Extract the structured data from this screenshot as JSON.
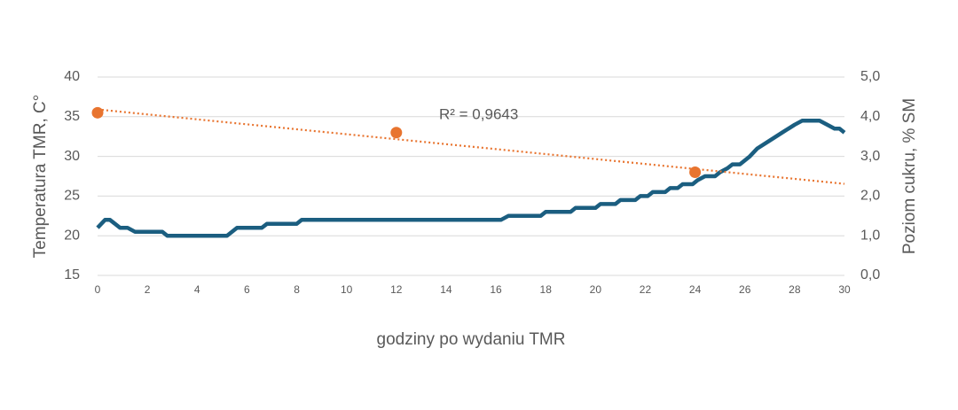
{
  "chart_data": {
    "type": "line",
    "xlabel": "godziny po wydaniu TMR",
    "ylabel": "Temperatura TMR, C°",
    "y2label": "Poziom cukru, % SM",
    "annotation": "R² = 0,9643",
    "xlim": [
      0,
      30
    ],
    "xticks": [
      0,
      2,
      4,
      6,
      8,
      10,
      12,
      14,
      16,
      18,
      20,
      22,
      24,
      26,
      28,
      30
    ],
    "ylim": [
      15,
      40
    ],
    "yticks": [
      15,
      20,
      25,
      30,
      35,
      40
    ],
    "y2lim": [
      0,
      5
    ],
    "y2ticks": [
      {
        "value": 0,
        "label": "0,0"
      },
      {
        "value": 1,
        "label": "1,0"
      },
      {
        "value": 2,
        "label": "2,0"
      },
      {
        "value": 3,
        "label": "3,0"
      },
      {
        "value": 4,
        "label": "4,0"
      },
      {
        "value": 5,
        "label": "5,0"
      }
    ],
    "grid": true,
    "series": [
      {
        "type": "line",
        "color": "#1b5e80",
        "x": [
          0,
          0.3,
          0.5,
          0.9,
          1.2,
          1.5,
          2.6,
          2.8,
          5.2,
          5.6,
          6.6,
          6.8,
          8,
          8.2,
          16.2,
          16.5,
          17.8,
          18,
          19,
          19.2,
          20,
          20.2,
          20.8,
          21,
          21.6,
          21.8,
          22.1,
          22.3,
          22.8,
          23,
          23.3,
          23.5,
          23.9,
          24.1,
          24.4,
          24.8,
          25,
          25.3,
          25.5,
          25.8,
          26,
          26.2,
          26.5,
          27,
          27.5,
          28,
          28.3,
          29,
          29.3,
          29.6,
          29.8,
          30
        ],
        "values": [
          21,
          22,
          22,
          21,
          21,
          20.5,
          20.5,
          20,
          20,
          21,
          21,
          21.5,
          21.5,
          22,
          22,
          22.5,
          22.5,
          23,
          23,
          23.5,
          23.5,
          24,
          24,
          24.5,
          24.5,
          25,
          25,
          25.5,
          25.5,
          26,
          26,
          26.5,
          26.5,
          27,
          27.5,
          27.5,
          28,
          28.5,
          29,
          29,
          29.5,
          30,
          31,
          32,
          33,
          34,
          34.5,
          34.5,
          34,
          33.5,
          33.5,
          33
        ]
      },
      {
        "type": "scatter",
        "color": "#e8742f",
        "axis": "y2",
        "trendline": "linear",
        "x": [
          0,
          12,
          24
        ],
        "values": [
          4.1,
          3.6,
          2.6
        ]
      }
    ]
  }
}
